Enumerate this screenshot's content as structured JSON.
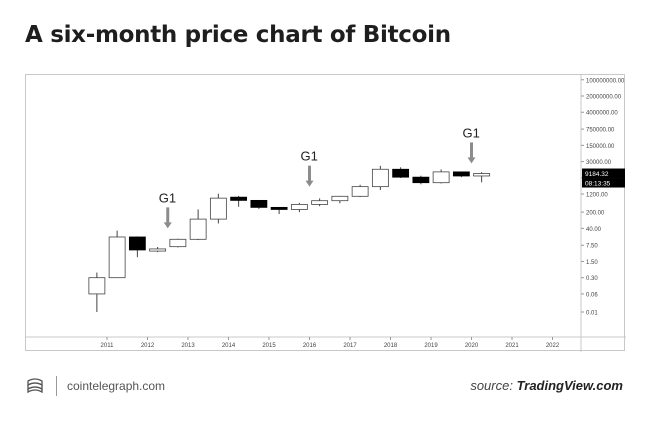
{
  "title": "A six-month price chart of Bitcoin",
  "footer": {
    "site": "cointelegraph.com",
    "source_prefix": "source: ",
    "source_name": "TradingView.com",
    "logo_icon": "cointelegraph-logo-icon"
  },
  "chart_data": {
    "type": "candlestick",
    "title": "",
    "xlabel": "",
    "ylabel": "",
    "y_scale": "log",
    "x_tick_labels": [
      "2011",
      "2012",
      "2013",
      "2014",
      "2015",
      "2016",
      "2017",
      "2018",
      "2019",
      "2020",
      "2021",
      "2022"
    ],
    "y_tick_labels": [
      "100000000.00",
      "20000000.00",
      "4000000.00",
      "750000.00",
      "150000.00",
      "30000.00",
      "6000.00",
      "1200.00",
      "200.00",
      "40.00",
      "7.50",
      "1.50",
      "0.30",
      "0.06",
      "0.01"
    ],
    "ylim": [
      0.005,
      150000000
    ],
    "colors": {
      "up": "#ffffff",
      "down": "#000000",
      "outline": "#1a1a1a",
      "arrow": "#8c8c8c",
      "price_label": "#000000"
    },
    "candles": [
      {
        "t": 2010.75,
        "open": 0.3,
        "high": 0.5,
        "low": 0.01,
        "close": 0.06,
        "dir": "up"
      },
      {
        "t": 2011.25,
        "open": 0.3,
        "high": 32,
        "low": 0.3,
        "close": 17,
        "dir": "up"
      },
      {
        "t": 2011.75,
        "open": 17,
        "high": 18,
        "low": 2.3,
        "close": 4.7,
        "dir": "down"
      },
      {
        "t": 2012.25,
        "open": 4.2,
        "high": 6.3,
        "low": 3.8,
        "close": 5.2,
        "dir": "up"
      },
      {
        "t": 2012.75,
        "open": 6.5,
        "high": 14.5,
        "low": 6.0,
        "close": 13.5,
        "dir": "up"
      },
      {
        "t": 2013.25,
        "open": 13.5,
        "high": 262,
        "low": 12.5,
        "close": 100,
        "dir": "up"
      },
      {
        "t": 2013.75,
        "open": 100,
        "high": 1240,
        "low": 65,
        "close": 800,
        "dir": "up"
      },
      {
        "t": 2014.25,
        "open": 880,
        "high": 1000,
        "low": 340,
        "close": 640,
        "dir": "down"
      },
      {
        "t": 2014.75,
        "open": 640,
        "high": 650,
        "low": 275,
        "close": 320,
        "dir": "down"
      },
      {
        "t": 2015.25,
        "open": 320,
        "high": 330,
        "low": 165,
        "close": 260,
        "dir": "down"
      },
      {
        "t": 2015.75,
        "open": 260,
        "high": 500,
        "low": 200,
        "close": 430,
        "dir": "up"
      },
      {
        "t": 2016.25,
        "open": 430,
        "high": 780,
        "low": 360,
        "close": 620,
        "dir": "up"
      },
      {
        "t": 2016.75,
        "open": 620,
        "high": 1000,
        "low": 480,
        "close": 960,
        "dir": "up"
      },
      {
        "t": 2017.25,
        "open": 960,
        "high": 3000,
        "low": 890,
        "close": 2500,
        "dir": "up"
      },
      {
        "t": 2017.75,
        "open": 2500,
        "high": 19700,
        "low": 1800,
        "close": 14000,
        "dir": "up"
      },
      {
        "t": 2018.25,
        "open": 14000,
        "high": 17000,
        "low": 5900,
        "close": 6400,
        "dir": "down"
      },
      {
        "t": 2018.75,
        "open": 6400,
        "high": 7400,
        "low": 3150,
        "close": 3700,
        "dir": "down"
      },
      {
        "t": 2019.25,
        "open": 3700,
        "high": 13800,
        "low": 3400,
        "close": 10800,
        "dir": "up"
      },
      {
        "t": 2019.75,
        "open": 10800,
        "high": 10900,
        "low": 6400,
        "close": 7200,
        "dir": "down"
      },
      {
        "t": 2020.25,
        "open": 7200,
        "high": 10500,
        "low": 3850,
        "close": 9184.32,
        "dir": "up"
      }
    ],
    "annotations": [
      {
        "text": "G1",
        "t": 2012.5,
        "target": 40
      },
      {
        "text": "G1",
        "t": 2016.0,
        "target": 2500
      },
      {
        "text": "G1",
        "t": 2020.0,
        "target": 25000
      }
    ],
    "last_price": {
      "price_label": "9184.32",
      "timer_label": "08:13:35",
      "value": 9184.32
    }
  }
}
